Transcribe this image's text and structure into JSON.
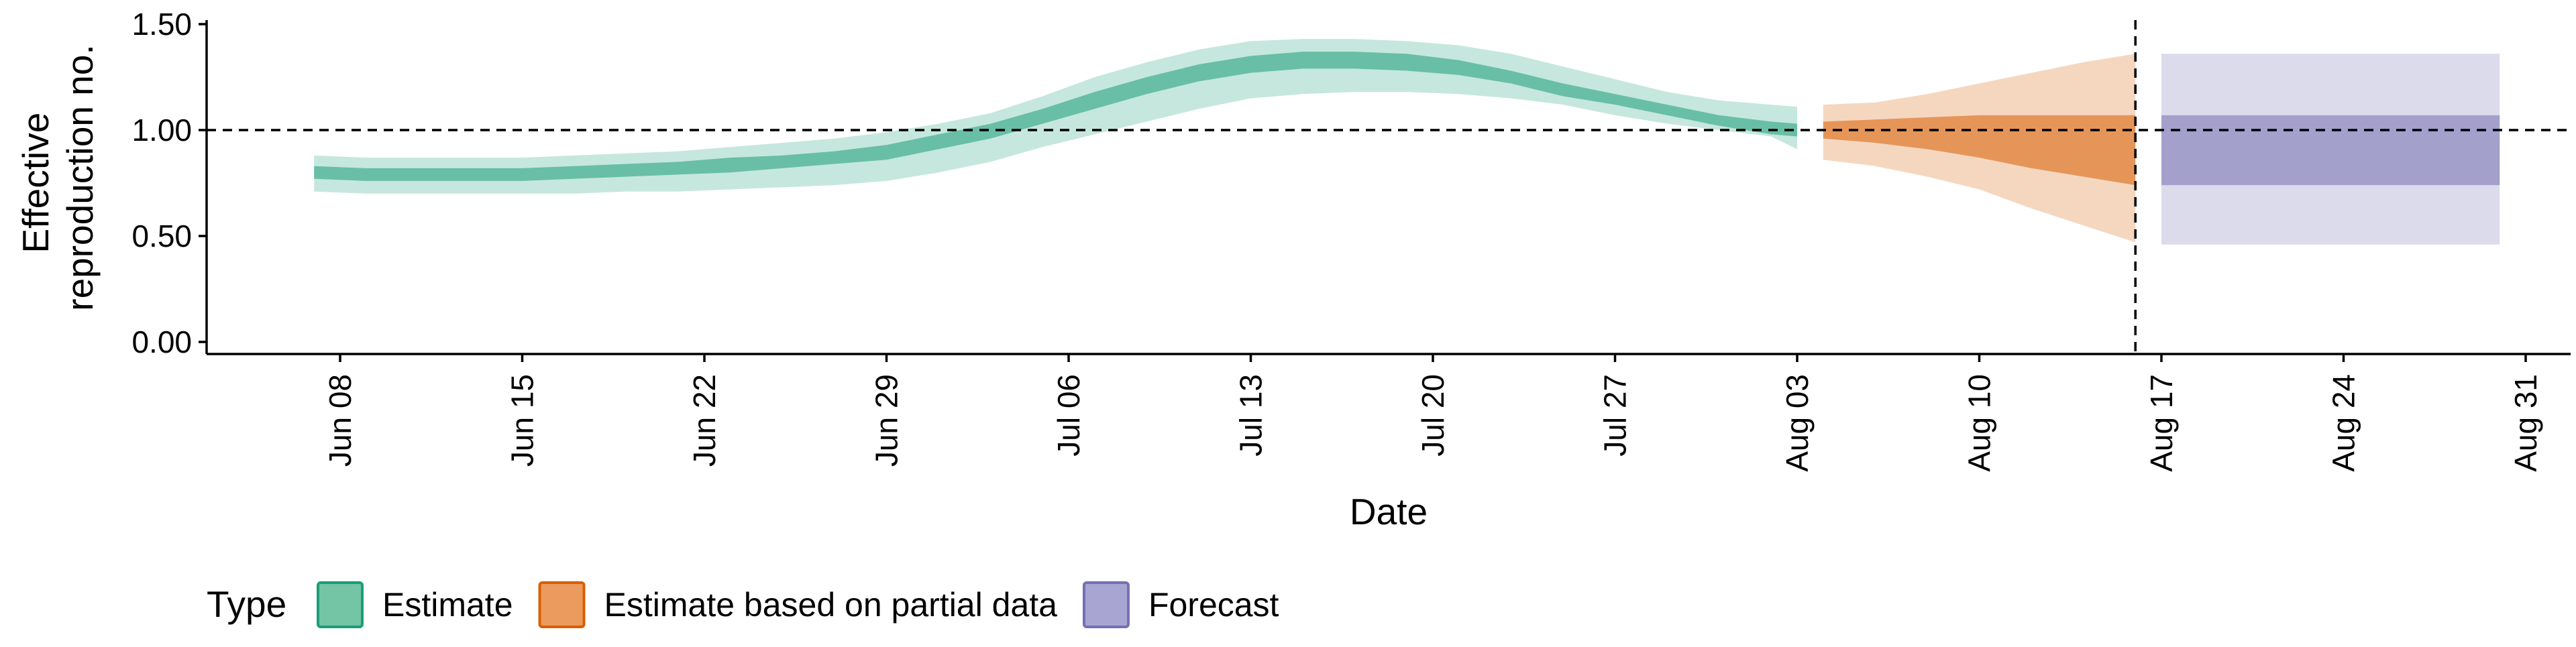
{
  "chart_data": {
    "type": "area",
    "xlabel": "Date",
    "ylabel_lines": [
      "Effective",
      "reproduction no."
    ],
    "ylim": [
      0,
      1.5
    ],
    "xlim": [
      "2020-06-01",
      "2020-09-02"
    ],
    "y_ticks": [
      {
        "value": 0.0,
        "label": "0.00"
      },
      {
        "value": 0.5,
        "label": "0.50"
      },
      {
        "value": 1.0,
        "label": "1.00"
      },
      {
        "value": 1.5,
        "label": "1.50"
      }
    ],
    "x_ticks": [
      {
        "date": "2020-06-08",
        "label": "Jun 08"
      },
      {
        "date": "2020-06-15",
        "label": "Jun 15"
      },
      {
        "date": "2020-06-22",
        "label": "Jun 22"
      },
      {
        "date": "2020-06-29",
        "label": "Jun 29"
      },
      {
        "date": "2020-07-06",
        "label": "Jul 06"
      },
      {
        "date": "2020-07-13",
        "label": "Jul 13"
      },
      {
        "date": "2020-07-20",
        "label": "Jul 20"
      },
      {
        "date": "2020-07-27",
        "label": "Jul 27"
      },
      {
        "date": "2020-08-03",
        "label": "Aug 03"
      },
      {
        "date": "2020-08-10",
        "label": "Aug 10"
      },
      {
        "date": "2020-08-17",
        "label": "Aug 17"
      },
      {
        "date": "2020-08-24",
        "label": "Aug 24"
      },
      {
        "date": "2020-08-31",
        "label": "Aug 31"
      }
    ],
    "reference_line_y": 1.0,
    "vertical_line_date": "2020-08-16",
    "grid": false,
    "legend": {
      "title": "Type",
      "position": "bottom-left",
      "entries": [
        {
          "label": "Estimate",
          "fill": "#74c4a6",
          "border": "#1b9e77"
        },
        {
          "label": "Estimate based on partial data",
          "fill": "#eb9b5e",
          "border": "#d95f02"
        },
        {
          "label": "Forecast",
          "fill": "#a8a5d3",
          "border": "#7570b3"
        }
      ]
    },
    "series": [
      {
        "name": "Estimate",
        "color": "#1b9e77",
        "dates": [
          "2020-06-07",
          "2020-06-09",
          "2020-06-11",
          "2020-06-13",
          "2020-06-15",
          "2020-06-17",
          "2020-06-19",
          "2020-06-21",
          "2020-06-23",
          "2020-06-25",
          "2020-06-27",
          "2020-06-29",
          "2020-07-01",
          "2020-07-03",
          "2020-07-05",
          "2020-07-07",
          "2020-07-09",
          "2020-07-11",
          "2020-07-13",
          "2020-07-15",
          "2020-07-17",
          "2020-07-19",
          "2020-07-21",
          "2020-07-23",
          "2020-07-25",
          "2020-07-27",
          "2020-07-29",
          "2020-07-31",
          "2020-08-02",
          "2020-08-03"
        ],
        "lower_90": [
          0.71,
          0.7,
          0.7,
          0.7,
          0.7,
          0.7,
          0.71,
          0.71,
          0.72,
          0.73,
          0.74,
          0.76,
          0.8,
          0.85,
          0.92,
          0.98,
          1.04,
          1.1,
          1.15,
          1.17,
          1.18,
          1.18,
          1.17,
          1.15,
          1.12,
          1.07,
          1.03,
          1.0,
          0.97,
          0.91
        ],
        "upper_90": [
          0.88,
          0.87,
          0.87,
          0.87,
          0.87,
          0.88,
          0.89,
          0.9,
          0.92,
          0.94,
          0.96,
          0.99,
          1.03,
          1.08,
          1.16,
          1.25,
          1.32,
          1.38,
          1.42,
          1.43,
          1.43,
          1.42,
          1.4,
          1.36,
          1.3,
          1.24,
          1.18,
          1.14,
          1.12,
          1.11
        ],
        "lower_50": [
          0.77,
          0.76,
          0.76,
          0.76,
          0.76,
          0.77,
          0.78,
          0.79,
          0.8,
          0.82,
          0.84,
          0.86,
          0.91,
          0.96,
          1.03,
          1.1,
          1.17,
          1.23,
          1.27,
          1.29,
          1.29,
          1.28,
          1.26,
          1.22,
          1.16,
          1.12,
          1.07,
          1.02,
          0.98,
          0.97
        ],
        "upper_50": [
          0.83,
          0.82,
          0.82,
          0.82,
          0.82,
          0.83,
          0.84,
          0.85,
          0.87,
          0.88,
          0.9,
          0.93,
          0.98,
          1.03,
          1.1,
          1.18,
          1.25,
          1.31,
          1.35,
          1.37,
          1.37,
          1.36,
          1.33,
          1.28,
          1.22,
          1.17,
          1.12,
          1.07,
          1.04,
          1.03
        ]
      },
      {
        "name": "Estimate based on partial data",
        "color": "#d95f02",
        "dates": [
          "2020-08-04",
          "2020-08-06",
          "2020-08-08",
          "2020-08-10",
          "2020-08-12",
          "2020-08-14",
          "2020-08-16"
        ],
        "lower_90": [
          0.86,
          0.83,
          0.78,
          0.72,
          0.63,
          0.55,
          0.47
        ],
        "upper_90": [
          1.12,
          1.13,
          1.17,
          1.22,
          1.27,
          1.32,
          1.36
        ],
        "lower_50": [
          0.96,
          0.94,
          0.91,
          0.87,
          0.82,
          0.78,
          0.74
        ],
        "upper_50": [
          1.04,
          1.05,
          1.06,
          1.07,
          1.07,
          1.07,
          1.07
        ]
      },
      {
        "name": "Forecast",
        "color": "#7570b3",
        "dates": [
          "2020-08-17",
          "2020-08-30"
        ],
        "lower_90": [
          0.46,
          0.46
        ],
        "upper_90": [
          1.36,
          1.36
        ],
        "lower_50": [
          0.74,
          0.74
        ],
        "upper_50": [
          1.07,
          1.07
        ]
      }
    ]
  }
}
